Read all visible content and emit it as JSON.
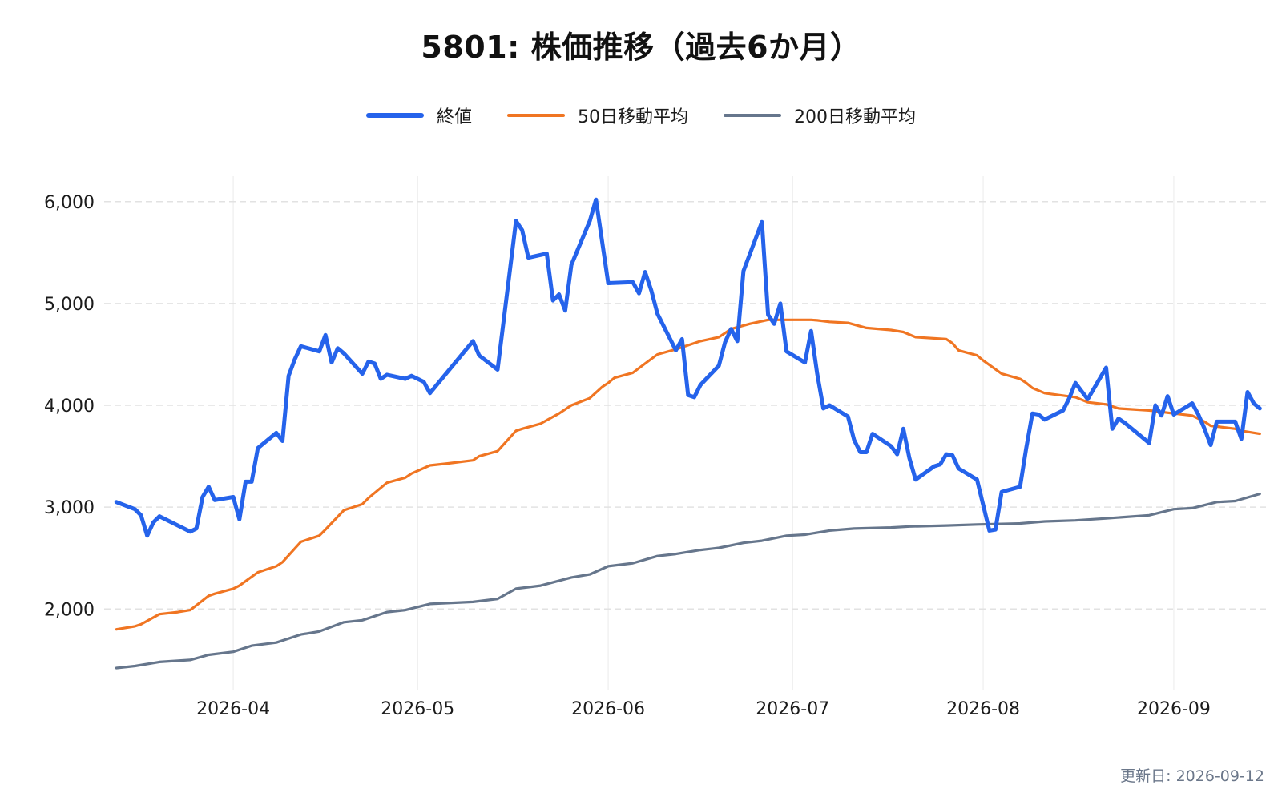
{
  "chart_data": {
    "type": "line",
    "title": "5801: 株価推移（過去6か月）",
    "footer": "更新日: 2026-09-12",
    "x_ticks": [
      "2026-04",
      "2026-05",
      "2026-06",
      "2026-07",
      "2026-08",
      "2026-09"
    ],
    "y_ticks": [
      2000,
      3000,
      4000,
      5000,
      6000
    ],
    "y_tick_labels": [
      "2,000",
      "3,000",
      "4,000",
      "5,000",
      "6,000"
    ],
    "xlim": [
      "2026-03-11",
      "2026-09-16"
    ],
    "ylim": [
      1200,
      6250
    ],
    "grid": true,
    "legend_position": "top-center",
    "colors": {
      "close": "#2563eb",
      "ma50": "#f07522",
      "ma200": "#66768c",
      "grid": "#e2e2e2"
    },
    "series": [
      {
        "key": "close",
        "name": "終値",
        "color": "#2563eb",
        "points": [
          [
            "2026-03-13",
            3050
          ],
          [
            "2026-03-16",
            2980
          ],
          [
            "2026-03-17",
            2920
          ],
          [
            "2026-03-18",
            2720
          ],
          [
            "2026-03-19",
            2850
          ],
          [
            "2026-03-20",
            2910
          ],
          [
            "2026-03-23",
            2820
          ],
          [
            "2026-03-25",
            2760
          ],
          [
            "2026-03-26",
            2790
          ],
          [
            "2026-03-27",
            3100
          ],
          [
            "2026-03-28",
            3200
          ],
          [
            "2026-03-29",
            3070
          ],
          [
            "2026-04-01",
            3100
          ],
          [
            "2026-04-02",
            2880
          ],
          [
            "2026-04-03",
            3250
          ],
          [
            "2026-04-04",
            3250
          ],
          [
            "2026-04-05",
            3580
          ],
          [
            "2026-04-08",
            3730
          ],
          [
            "2026-04-09",
            3650
          ],
          [
            "2026-04-10",
            4290
          ],
          [
            "2026-04-11",
            4450
          ],
          [
            "2026-04-12",
            4580
          ],
          [
            "2026-04-15",
            4530
          ],
          [
            "2026-04-16",
            4690
          ],
          [
            "2026-04-17",
            4420
          ],
          [
            "2026-04-18",
            4560
          ],
          [
            "2026-04-19",
            4510
          ],
          [
            "2026-04-22",
            4310
          ],
          [
            "2026-04-23",
            4430
          ],
          [
            "2026-04-24",
            4410
          ],
          [
            "2026-04-25",
            4260
          ],
          [
            "2026-04-26",
            4300
          ],
          [
            "2026-04-29",
            4260
          ],
          [
            "2026-04-30",
            4290
          ],
          [
            "2026-05-02",
            4230
          ],
          [
            "2026-05-03",
            4120
          ],
          [
            "2026-05-10",
            4630
          ],
          [
            "2026-05-11",
            4490
          ],
          [
            "2026-05-14",
            4350
          ],
          [
            "2026-05-17",
            5810
          ],
          [
            "2026-05-18",
            5720
          ],
          [
            "2026-05-19",
            5450
          ],
          [
            "2026-05-22",
            5490
          ],
          [
            "2026-05-23",
            5030
          ],
          [
            "2026-05-24",
            5090
          ],
          [
            "2026-05-25",
            4930
          ],
          [
            "2026-05-26",
            5380
          ],
          [
            "2026-05-29",
            5810
          ],
          [
            "2026-05-30",
            6020
          ],
          [
            "2026-06-01",
            5200
          ],
          [
            "2026-06-05",
            5210
          ],
          [
            "2026-06-06",
            5100
          ],
          [
            "2026-06-07",
            5310
          ],
          [
            "2026-06-08",
            5130
          ],
          [
            "2026-06-09",
            4900
          ],
          [
            "2026-06-12",
            4540
          ],
          [
            "2026-06-13",
            4650
          ],
          [
            "2026-06-14",
            4100
          ],
          [
            "2026-06-15",
            4080
          ],
          [
            "2026-06-16",
            4200
          ],
          [
            "2026-06-19",
            4390
          ],
          [
            "2026-06-20",
            4620
          ],
          [
            "2026-06-21",
            4750
          ],
          [
            "2026-06-22",
            4630
          ],
          [
            "2026-06-23",
            5320
          ],
          [
            "2026-06-26",
            5800
          ],
          [
            "2026-06-27",
            4890
          ],
          [
            "2026-06-28",
            4800
          ],
          [
            "2026-06-29",
            5000
          ],
          [
            "2026-06-30",
            4530
          ],
          [
            "2026-07-03",
            4420
          ],
          [
            "2026-07-04",
            4730
          ],
          [
            "2026-07-05",
            4310
          ],
          [
            "2026-07-06",
            3970
          ],
          [
            "2026-07-07",
            4000
          ],
          [
            "2026-07-10",
            3890
          ],
          [
            "2026-07-11",
            3660
          ],
          [
            "2026-07-12",
            3540
          ],
          [
            "2026-07-13",
            3540
          ],
          [
            "2026-07-14",
            3720
          ],
          [
            "2026-07-17",
            3600
          ],
          [
            "2026-07-18",
            3520
          ],
          [
            "2026-07-19",
            3770
          ],
          [
            "2026-07-20",
            3480
          ],
          [
            "2026-07-21",
            3270
          ],
          [
            "2026-07-24",
            3400
          ],
          [
            "2026-07-25",
            3420
          ],
          [
            "2026-07-26",
            3520
          ],
          [
            "2026-07-27",
            3510
          ],
          [
            "2026-07-28",
            3380
          ],
          [
            "2026-07-31",
            3270
          ],
          [
            "2026-08-01",
            3020
          ],
          [
            "2026-08-02",
            2770
          ],
          [
            "2026-08-03",
            2780
          ],
          [
            "2026-08-04",
            3150
          ],
          [
            "2026-08-07",
            3200
          ],
          [
            "2026-08-08",
            3580
          ],
          [
            "2026-08-09",
            3920
          ],
          [
            "2026-08-10",
            3910
          ],
          [
            "2026-08-11",
            3860
          ],
          [
            "2026-08-14",
            3950
          ],
          [
            "2026-08-15",
            4070
          ],
          [
            "2026-08-16",
            4220
          ],
          [
            "2026-08-17",
            4140
          ],
          [
            "2026-08-18",
            4060
          ],
          [
            "2026-08-21",
            4370
          ],
          [
            "2026-08-22",
            3770
          ],
          [
            "2026-08-23",
            3870
          ],
          [
            "2026-08-24",
            3830
          ],
          [
            "2026-08-25",
            3780
          ],
          [
            "2026-08-28",
            3630
          ],
          [
            "2026-08-29",
            4000
          ],
          [
            "2026-08-30",
            3900
          ],
          [
            "2026-08-31",
            4090
          ],
          [
            "2026-09-01",
            3910
          ],
          [
            "2026-09-04",
            4020
          ],
          [
            "2026-09-05",
            3910
          ],
          [
            "2026-09-06",
            3770
          ],
          [
            "2026-09-07",
            3610
          ],
          [
            "2026-09-08",
            3840
          ],
          [
            "2026-09-11",
            3840
          ],
          [
            "2026-09-12",
            3670
          ],
          [
            "2026-09-13",
            4130
          ],
          [
            "2026-09-14",
            4020
          ],
          [
            "2026-09-15",
            3970
          ]
        ]
      },
      {
        "key": "ma50",
        "name": "50日移動平均",
        "color": "#f07522",
        "points": [
          [
            "2026-03-13",
            1800
          ],
          [
            "2026-03-16",
            1830
          ],
          [
            "2026-03-17",
            1850
          ],
          [
            "2026-03-20",
            1950
          ],
          [
            "2026-03-23",
            1970
          ],
          [
            "2026-03-25",
            1990
          ],
          [
            "2026-03-28",
            2130
          ],
          [
            "2026-03-29",
            2150
          ],
          [
            "2026-04-01",
            2200
          ],
          [
            "2026-04-02",
            2230
          ],
          [
            "2026-04-05",
            2360
          ],
          [
            "2026-04-08",
            2420
          ],
          [
            "2026-04-09",
            2460
          ],
          [
            "2026-04-12",
            2660
          ],
          [
            "2026-04-15",
            2720
          ],
          [
            "2026-04-16",
            2780
          ],
          [
            "2026-04-19",
            2970
          ],
          [
            "2026-04-22",
            3030
          ],
          [
            "2026-04-23",
            3090
          ],
          [
            "2026-04-26",
            3240
          ],
          [
            "2026-04-29",
            3290
          ],
          [
            "2026-04-30",
            3330
          ],
          [
            "2026-05-03",
            3410
          ],
          [
            "2026-05-06",
            3430
          ],
          [
            "2026-05-10",
            3460
          ],
          [
            "2026-05-11",
            3500
          ],
          [
            "2026-05-14",
            3550
          ],
          [
            "2026-05-17",
            3750
          ],
          [
            "2026-05-18",
            3770
          ],
          [
            "2026-05-21",
            3820
          ],
          [
            "2026-05-24",
            3920
          ],
          [
            "2026-05-26",
            4000
          ],
          [
            "2026-05-29",
            4070
          ],
          [
            "2026-05-31",
            4180
          ],
          [
            "2026-06-01",
            4220
          ],
          [
            "2026-06-02",
            4270
          ],
          [
            "2026-06-05",
            4320
          ],
          [
            "2026-06-07",
            4410
          ],
          [
            "2026-06-09",
            4500
          ],
          [
            "2026-06-12",
            4550
          ],
          [
            "2026-06-14",
            4590
          ],
          [
            "2026-06-16",
            4630
          ],
          [
            "2026-06-19",
            4670
          ],
          [
            "2026-06-21",
            4750
          ],
          [
            "2026-06-24",
            4800
          ],
          [
            "2026-06-27",
            4840
          ],
          [
            "2026-06-30",
            4840
          ],
          [
            "2026-07-03",
            4840
          ],
          [
            "2026-07-04",
            4840
          ],
          [
            "2026-07-05",
            4835
          ],
          [
            "2026-07-07",
            4820
          ],
          [
            "2026-07-10",
            4810
          ],
          [
            "2026-07-13",
            4760
          ],
          [
            "2026-07-17",
            4740
          ],
          [
            "2026-07-19",
            4720
          ],
          [
            "2026-07-21",
            4670
          ],
          [
            "2026-07-26",
            4650
          ],
          [
            "2026-07-27",
            4610
          ],
          [
            "2026-07-28",
            4540
          ],
          [
            "2026-07-31",
            4490
          ],
          [
            "2026-08-01",
            4440
          ],
          [
            "2026-08-04",
            4310
          ],
          [
            "2026-08-07",
            4260
          ],
          [
            "2026-08-08",
            4220
          ],
          [
            "2026-08-09",
            4170
          ],
          [
            "2026-08-11",
            4120
          ],
          [
            "2026-08-16",
            4080
          ],
          [
            "2026-08-18",
            4030
          ],
          [
            "2026-08-21",
            4010
          ],
          [
            "2026-08-23",
            3970
          ],
          [
            "2026-08-28",
            3950
          ],
          [
            "2026-09-01",
            3920
          ],
          [
            "2026-09-04",
            3900
          ],
          [
            "2026-09-06",
            3840
          ],
          [
            "2026-09-07",
            3800
          ],
          [
            "2026-09-11",
            3770
          ],
          [
            "2026-09-12",
            3750
          ],
          [
            "2026-09-15",
            3720
          ]
        ]
      },
      {
        "key": "ma200",
        "name": "200日移動平均",
        "color": "#66768c",
        "points": [
          [
            "2026-03-13",
            1420
          ],
          [
            "2026-03-16",
            1440
          ],
          [
            "2026-03-20",
            1480
          ],
          [
            "2026-03-25",
            1500
          ],
          [
            "2026-03-28",
            1550
          ],
          [
            "2026-04-01",
            1580
          ],
          [
            "2026-04-04",
            1640
          ],
          [
            "2026-04-08",
            1670
          ],
          [
            "2026-04-12",
            1750
          ],
          [
            "2026-04-15",
            1780
          ],
          [
            "2026-04-19",
            1870
          ],
          [
            "2026-04-22",
            1890
          ],
          [
            "2026-04-26",
            1970
          ],
          [
            "2026-04-29",
            1990
          ],
          [
            "2026-05-03",
            2050
          ],
          [
            "2026-05-10",
            2070
          ],
          [
            "2026-05-14",
            2100
          ],
          [
            "2026-05-17",
            2200
          ],
          [
            "2026-05-21",
            2230
          ],
          [
            "2026-05-26",
            2310
          ],
          [
            "2026-05-29",
            2340
          ],
          [
            "2026-06-01",
            2420
          ],
          [
            "2026-06-05",
            2450
          ],
          [
            "2026-06-09",
            2520
          ],
          [
            "2026-06-12",
            2540
          ],
          [
            "2026-06-16",
            2580
          ],
          [
            "2026-06-19",
            2600
          ],
          [
            "2026-06-23",
            2650
          ],
          [
            "2026-06-26",
            2670
          ],
          [
            "2026-06-30",
            2720
          ],
          [
            "2026-07-03",
            2730
          ],
          [
            "2026-07-07",
            2770
          ],
          [
            "2026-07-11",
            2790
          ],
          [
            "2026-07-17",
            2800
          ],
          [
            "2026-07-20",
            2810
          ],
          [
            "2026-07-26",
            2820
          ],
          [
            "2026-07-31",
            2830
          ],
          [
            "2026-08-07",
            2840
          ],
          [
            "2026-08-11",
            2860
          ],
          [
            "2026-08-16",
            2870
          ],
          [
            "2026-08-21",
            2890
          ],
          [
            "2026-08-28",
            2920
          ],
          [
            "2026-09-01",
            2980
          ],
          [
            "2026-09-04",
            2990
          ],
          [
            "2026-09-08",
            3050
          ],
          [
            "2026-09-11",
            3060
          ],
          [
            "2026-09-15",
            3130
          ]
        ]
      }
    ]
  }
}
